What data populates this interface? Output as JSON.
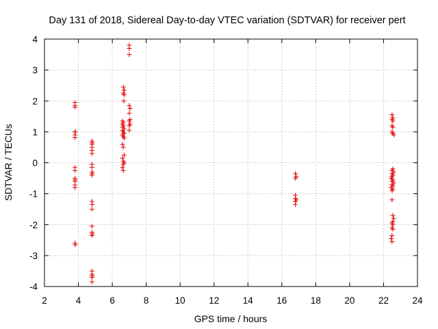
{
  "chart_data": {
    "type": "scatter",
    "title": "Day 131 of 2018, Sidereal Day-to-day VTEC variation (SDTVAR) for receiver pert",
    "xlabel": "GPS time / hours",
    "ylabel": "SDTVAR / TECUs",
    "xlim": [
      2,
      24
    ],
    "ylim": [
      -4,
      4
    ],
    "xticks": [
      2,
      4,
      6,
      8,
      10,
      12,
      14,
      16,
      18,
      20,
      22,
      24
    ],
    "yticks": [
      -4,
      -3,
      -2,
      -1,
      0,
      1,
      2,
      3,
      4
    ],
    "grid": true,
    "marker": "+",
    "marker_color": "#e00000",
    "series": [
      {
        "name": "SDTVAR",
        "points": [
          [
            3.8,
            1.95
          ],
          [
            3.8,
            1.85
          ],
          [
            3.8,
            1.8
          ],
          [
            3.8,
            1.0
          ],
          [
            3.82,
            1.0
          ],
          [
            3.8,
            0.9
          ],
          [
            3.8,
            0.82
          ],
          [
            3.8,
            -0.15
          ],
          [
            3.8,
            -0.25
          ],
          [
            3.8,
            -0.5
          ],
          [
            3.8,
            -0.55
          ],
          [
            3.8,
            -0.6
          ],
          [
            3.8,
            -0.72
          ],
          [
            3.8,
            -0.8
          ],
          [
            3.8,
            -2.6
          ],
          [
            3.82,
            -2.65
          ],
          [
            4.8,
            0.7
          ],
          [
            4.82,
            0.65
          ],
          [
            4.8,
            0.6
          ],
          [
            4.8,
            0.5
          ],
          [
            4.8,
            0.4
          ],
          [
            4.8,
            0.3
          ],
          [
            4.8,
            -0.05
          ],
          [
            4.8,
            -0.15
          ],
          [
            4.82,
            -0.3
          ],
          [
            4.8,
            -0.35
          ],
          [
            4.8,
            -0.4
          ],
          [
            4.8,
            -1.25
          ],
          [
            4.82,
            -1.35
          ],
          [
            4.8,
            -1.5
          ],
          [
            4.8,
            -2.05
          ],
          [
            4.8,
            -2.25
          ],
          [
            4.82,
            -2.3
          ],
          [
            4.8,
            -2.35
          ],
          [
            4.8,
            -3.5
          ],
          [
            4.8,
            -3.6
          ],
          [
            4.82,
            -3.65
          ],
          [
            4.8,
            -3.7
          ],
          [
            4.8,
            -3.85
          ],
          [
            6.65,
            2.45
          ],
          [
            6.7,
            2.35
          ],
          [
            6.65,
            2.25
          ],
          [
            6.7,
            2.2
          ],
          [
            6.68,
            2.0
          ],
          [
            6.6,
            1.35
          ],
          [
            6.65,
            1.3
          ],
          [
            6.6,
            1.25
          ],
          [
            6.65,
            1.2
          ],
          [
            6.6,
            1.15
          ],
          [
            6.7,
            1.1
          ],
          [
            6.6,
            1.05
          ],
          [
            6.65,
            1.0
          ],
          [
            6.7,
            0.95
          ],
          [
            6.6,
            0.9
          ],
          [
            6.65,
            0.85
          ],
          [
            6.7,
            0.8
          ],
          [
            6.6,
            0.6
          ],
          [
            6.65,
            0.5
          ],
          [
            6.7,
            0.25
          ],
          [
            6.6,
            0.15
          ],
          [
            6.65,
            0.05
          ],
          [
            6.7,
            0.0
          ],
          [
            6.65,
            -0.05
          ],
          [
            6.6,
            -0.15
          ],
          [
            6.65,
            -0.25
          ],
          [
            7.0,
            3.8
          ],
          [
            7.0,
            3.7
          ],
          [
            7.0,
            3.5
          ],
          [
            7.0,
            1.85
          ],
          [
            7.05,
            1.75
          ],
          [
            7.0,
            1.6
          ],
          [
            7.05,
            1.4
          ],
          [
            7.0,
            1.35
          ],
          [
            7.05,
            1.25
          ],
          [
            7.0,
            1.2
          ],
          [
            7.0,
            1.05
          ],
          [
            16.8,
            -0.35
          ],
          [
            16.85,
            -0.45
          ],
          [
            16.8,
            -0.5
          ],
          [
            16.8,
            -1.05
          ],
          [
            16.8,
            -1.15
          ],
          [
            16.85,
            -1.2
          ],
          [
            16.8,
            -1.25
          ],
          [
            16.8,
            -1.35
          ],
          [
            22.5,
            1.55
          ],
          [
            22.55,
            1.45
          ],
          [
            22.5,
            1.4
          ],
          [
            22.55,
            1.35
          ],
          [
            22.5,
            1.2
          ],
          [
            22.55,
            1.15
          ],
          [
            22.5,
            1.0
          ],
          [
            22.55,
            0.95
          ],
          [
            22.6,
            0.9
          ],
          [
            22.55,
            -0.2
          ],
          [
            22.5,
            -0.25
          ],
          [
            22.6,
            -0.3
          ],
          [
            22.5,
            -0.35
          ],
          [
            22.55,
            -0.4
          ],
          [
            22.5,
            -0.45
          ],
          [
            22.45,
            -0.5
          ],
          [
            22.55,
            -0.55
          ],
          [
            22.5,
            -0.6
          ],
          [
            22.6,
            -0.65
          ],
          [
            22.5,
            -0.7
          ],
          [
            22.55,
            -0.75
          ],
          [
            22.45,
            -0.8
          ],
          [
            22.55,
            -0.85
          ],
          [
            22.5,
            -0.9
          ],
          [
            22.5,
            -1.2
          ],
          [
            22.55,
            -1.7
          ],
          [
            22.6,
            -1.8
          ],
          [
            22.55,
            -1.9
          ],
          [
            22.5,
            -1.95
          ],
          [
            22.55,
            -2.0
          ],
          [
            22.5,
            -2.1
          ],
          [
            22.55,
            -2.15
          ],
          [
            22.5,
            -2.35
          ],
          [
            22.45,
            -2.45
          ],
          [
            22.5,
            -2.55
          ]
        ]
      }
    ]
  }
}
